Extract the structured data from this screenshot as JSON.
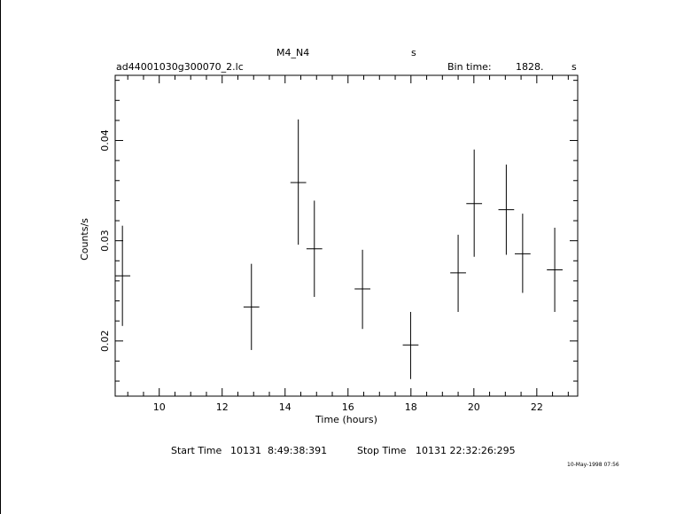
{
  "header": {
    "object_name": "M4_N4",
    "object_unit": "s",
    "file_name": "ad44001030g300070_2.lc",
    "bin_time_label": "Bin time:",
    "bin_time_value": "1828.",
    "bin_time_unit": "s"
  },
  "footer": {
    "start_label": "Start Time",
    "start_value": "10131  8:49:38:391",
    "stop_label": "Stop Time",
    "stop_value": "10131 22:32:26:295",
    "timestamp": "10-May-1998 07:56"
  },
  "chart_data": {
    "type": "scatter",
    "xlabel": "Time (hours)",
    "ylabel": "Counts/s",
    "xlim": [
      8.6,
      23.3
    ],
    "ylim": [
      0.0145,
      0.0465
    ],
    "x_ticks": [
      10,
      12,
      14,
      16,
      18,
      20,
      22
    ],
    "y_ticks": [
      0.02,
      0.03,
      0.04
    ],
    "x_tick_labels": [
      "10",
      "12",
      "14",
      "16",
      "18",
      "20",
      "22"
    ],
    "y_tick_labels": [
      "0.02",
      "0.03",
      "0.04"
    ],
    "grid": false,
    "points": [
      {
        "x": 8.83,
        "y": 0.0265,
        "yerr_low": 0.0215,
        "yerr_high": 0.0315,
        "xerr": 0.25
      },
      {
        "x": 12.93,
        "y": 0.0234,
        "yerr_low": 0.0191,
        "yerr_high": 0.0277,
        "xerr": 0.25
      },
      {
        "x": 14.42,
        "y": 0.0358,
        "yerr_low": 0.0296,
        "yerr_high": 0.0421,
        "xerr": 0.25
      },
      {
        "x": 14.93,
        "y": 0.0292,
        "yerr_low": 0.0244,
        "yerr_high": 0.034,
        "xerr": 0.25
      },
      {
        "x": 16.46,
        "y": 0.0252,
        "yerr_low": 0.0212,
        "yerr_high": 0.0291,
        "xerr": 0.25
      },
      {
        "x": 17.99,
        "y": 0.0196,
        "yerr_low": 0.0162,
        "yerr_high": 0.0229,
        "xerr": 0.25
      },
      {
        "x": 19.5,
        "y": 0.0268,
        "yerr_low": 0.0229,
        "yerr_high": 0.0306,
        "xerr": 0.25
      },
      {
        "x": 20.01,
        "y": 0.0337,
        "yerr_low": 0.0284,
        "yerr_high": 0.0391,
        "xerr": 0.25
      },
      {
        "x": 21.03,
        "y": 0.0331,
        "yerr_low": 0.0286,
        "yerr_high": 0.0376,
        "xerr": 0.25
      },
      {
        "x": 21.55,
        "y": 0.0287,
        "yerr_low": 0.0248,
        "yerr_high": 0.0327,
        "xerr": 0.25
      },
      {
        "x": 22.57,
        "y": 0.0271,
        "yerr_low": 0.0229,
        "yerr_high": 0.0313,
        "xerr": 0.25
      }
    ]
  }
}
